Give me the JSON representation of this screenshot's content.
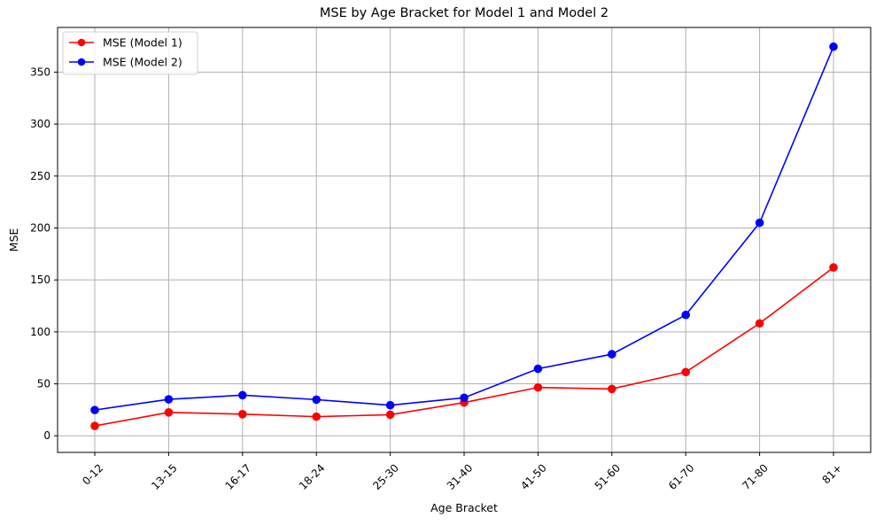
{
  "chart_data": {
    "type": "line",
    "title": "MSE by Age Bracket for Model 1 and Model 2",
    "xlabel": "Age Bracket",
    "ylabel": "MSE",
    "categories": [
      "0-12",
      "13-15",
      "16-17",
      "18-24",
      "25-30",
      "31-40",
      "41-50",
      "51-60",
      "61-70",
      "71-80",
      "81+"
    ],
    "yticks": [
      0,
      50,
      100,
      150,
      200,
      250,
      300,
      350
    ],
    "ylim": [
      -16,
      393
    ],
    "grid": true,
    "legend_position": "upper-left",
    "series": [
      {
        "name": "MSE (Model 1)",
        "color": "#ff0000",
        "values": [
          9.5,
          22.5,
          20.8,
          18.4,
          20.3,
          32.0,
          46.5,
          45.1,
          61.3,
          108.2,
          162.0
        ]
      },
      {
        "name": "MSE (Model 2)",
        "color": "#0000ff",
        "values": [
          24.8,
          35.1,
          39.1,
          34.8,
          29.4,
          36.6,
          64.5,
          78.5,
          116.3,
          205.0,
          374.5
        ]
      }
    ]
  }
}
